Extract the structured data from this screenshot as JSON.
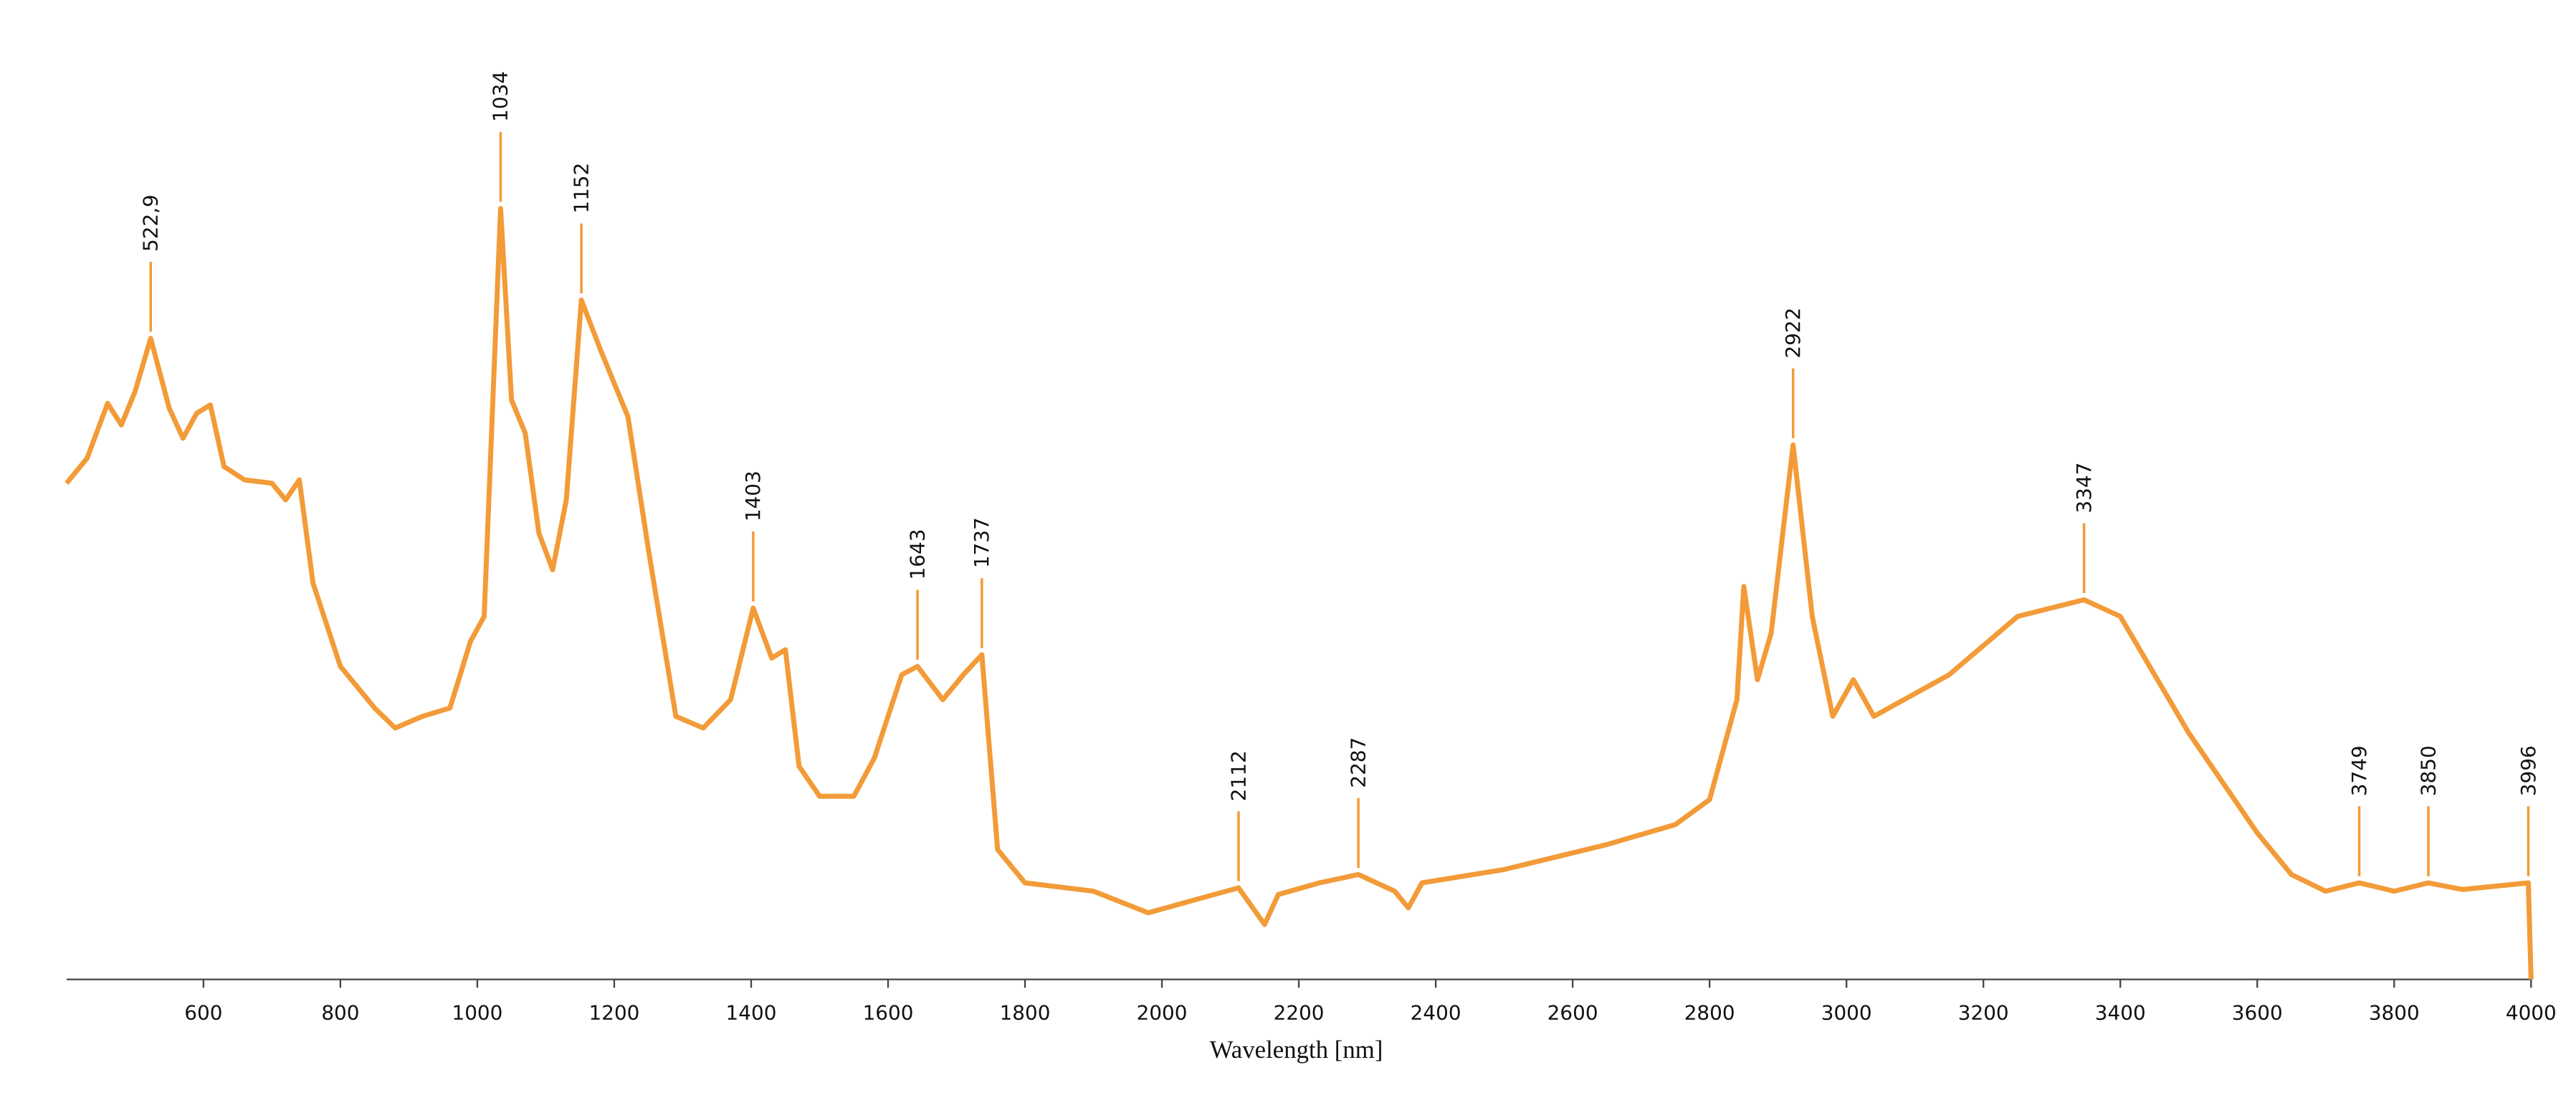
{
  "chart_data": {
    "type": "line",
    "x_label": "Wavelength [nm]",
    "xlim": [
      400,
      4000
    ],
    "xticks": [
      600,
      800,
      1000,
      1200,
      1400,
      1600,
      1800,
      2000,
      2200,
      2400,
      2600,
      2800,
      3000,
      3200,
      3400,
      3600,
      3800,
      4000
    ],
    "ylim": [
      0,
      100
    ],
    "series": [
      {
        "color": "#f29b38",
        "x": [
          400,
          430,
          460,
          480,
          500,
          522.9,
          550,
          570,
          590,
          610,
          630,
          660,
          700,
          720,
          740,
          760,
          800,
          850,
          880,
          920,
          960,
          990,
          1010,
          1034,
          1050,
          1070,
          1090,
          1110,
          1130,
          1152,
          1180,
          1220,
          1250,
          1290,
          1330,
          1370,
          1403,
          1430,
          1450,
          1470,
          1500,
          1550,
          1580,
          1620,
          1643,
          1680,
          1710,
          1737,
          1760,
          1800,
          1900,
          1980,
          2050,
          2112,
          2150,
          2170,
          2230,
          2287,
          2340,
          2360,
          2380,
          2500,
          2650,
          2750,
          2800,
          2840,
          2850,
          2870,
          2890,
          2922,
          2950,
          2980,
          3010,
          3040,
          3150,
          3250,
          3347,
          3400,
          3500,
          3600,
          3650,
          3700,
          3749,
          3800,
          3850,
          3900,
          3996,
          4000
        ],
        "values": [
          59.6,
          62.6,
          69.2,
          66.6,
          70.6,
          77,
          68.6,
          65,
          68,
          69,
          61.6,
          60,
          59.6,
          57.6,
          60,
          47.6,
          37.6,
          32.6,
          30.2,
          31.6,
          32.6,
          40.6,
          43.6,
          92.6,
          69.6,
          65.6,
          53.6,
          49.2,
          57.6,
          81.6,
          75.6,
          67.6,
          51.6,
          31.6,
          30.2,
          33.6,
          44.6,
          38.6,
          39.6,
          25.6,
          22,
          22,
          26.6,
          36.6,
          37.6,
          33.6,
          36.6,
          39,
          15.6,
          11.6,
          10.6,
          8,
          9.6,
          11,
          6.6,
          10.2,
          11.6,
          12.6,
          10.6,
          8.6,
          11.6,
          13.2,
          16.2,
          18.6,
          21.6,
          33.6,
          47.2,
          36,
          41.6,
          64.2,
          43.6,
          31.6,
          36,
          31.6,
          36.6,
          43.6,
          45.6,
          43.6,
          29.6,
          17.6,
          12.6,
          10.6,
          11.6,
          10.6,
          11.6,
          10.8,
          11.6,
          0
        ]
      }
    ],
    "annotations": [
      {
        "value": 522.9,
        "label": "522,9"
      },
      1034,
      1152,
      1403,
      1643,
      1737,
      2112,
      2287,
      2922,
      3347,
      3749,
      3850,
      3996
    ]
  }
}
